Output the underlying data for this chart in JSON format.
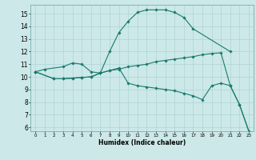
{
  "xlabel": "Humidex (Indice chaleur)",
  "bg_color": "#cce8e8",
  "grid_color": "#aed4d4",
  "line_color": "#1a7a6e",
  "xlim": [
    -0.5,
    23.5
  ],
  "ylim": [
    5.7,
    15.7
  ],
  "yticks": [
    6,
    7,
    8,
    9,
    10,
    11,
    12,
    13,
    14,
    15
  ],
  "xticks": [
    0,
    1,
    2,
    3,
    4,
    5,
    6,
    7,
    8,
    9,
    10,
    11,
    12,
    13,
    14,
    15,
    16,
    17,
    18,
    19,
    20,
    21,
    22,
    23
  ],
  "line1_x": [
    0,
    1,
    3,
    4,
    5,
    6,
    7,
    8,
    9,
    10,
    11,
    12,
    13,
    14,
    15,
    16,
    17,
    21
  ],
  "line1_y": [
    10.4,
    10.6,
    10.8,
    11.1,
    11.0,
    10.4,
    10.3,
    12.0,
    13.5,
    14.4,
    15.1,
    15.3,
    15.3,
    15.3,
    15.1,
    14.7,
    13.8,
    12.0
  ],
  "line2_x": [
    0,
    2,
    3,
    4,
    5,
    6,
    7,
    8,
    9,
    10,
    11,
    12,
    13,
    14,
    15,
    16,
    17,
    18,
    19,
    20,
    21,
    22,
    23
  ],
  "line2_y": [
    10.4,
    9.85,
    9.85,
    9.9,
    9.95,
    10.0,
    10.3,
    10.5,
    10.6,
    10.8,
    10.9,
    11.0,
    11.2,
    11.3,
    11.4,
    11.5,
    11.6,
    11.75,
    11.85,
    11.9,
    9.3,
    7.8,
    5.7
  ],
  "line3_x": [
    0,
    2,
    3,
    4,
    5,
    6,
    7,
    8,
    9,
    10,
    11,
    12,
    13,
    14,
    15,
    16,
    17,
    18,
    19,
    20,
    21,
    22,
    23
  ],
  "line3_y": [
    10.4,
    9.85,
    9.85,
    9.9,
    9.95,
    10.0,
    10.3,
    10.5,
    10.7,
    9.5,
    9.3,
    9.2,
    9.1,
    9.0,
    8.9,
    8.7,
    8.5,
    8.2,
    9.3,
    9.5,
    9.3,
    7.8,
    5.7
  ]
}
